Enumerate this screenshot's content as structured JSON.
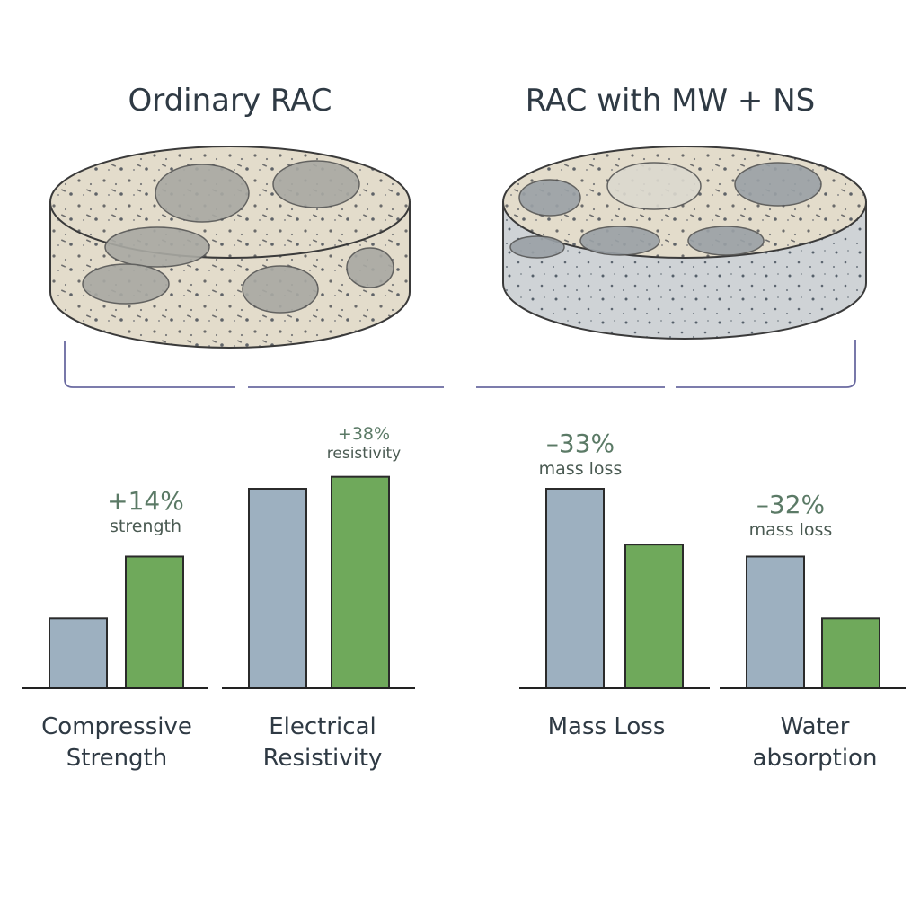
{
  "panels": {
    "left_title": "Ordinary RAC",
    "right_title": "RAC with MW + NS"
  },
  "colors": {
    "baseline": "#9db0c0",
    "treated": "#6fa95b",
    "bar_stroke": "#2b2b2b",
    "annotation": "#5b7a66",
    "bracket": "#6a6aa0"
  },
  "chart_data": [
    {
      "type": "bar",
      "categories": [
        "Compressive Strength"
      ],
      "label_lines": [
        "Compressive",
        "Strength"
      ],
      "series": [
        {
          "values": [
            0.35
          ]
        },
        {
          "values": [
            0.66
          ]
        }
      ],
      "annotation": {
        "value": "+14%",
        "text": "strength"
      }
    },
    {
      "type": "bar",
      "categories": [
        "Electrical Resistivity"
      ],
      "label_lines": [
        "Electrical",
        "Resistivity"
      ],
      "series": [
        {
          "values": [
            1.0
          ]
        },
        {
          "values": [
            1.06
          ]
        }
      ],
      "annotation": {
        "value": "+38%",
        "text": "resistivity"
      }
    },
    {
      "type": "bar",
      "categories": [
        "Mass Loss"
      ],
      "label_lines": [
        "Mass Loss"
      ],
      "series": [
        {
          "values": [
            1.0
          ]
        },
        {
          "values": [
            0.72
          ]
        }
      ],
      "annotation": {
        "value": "–33%",
        "text": "mass loss"
      }
    },
    {
      "type": "bar",
      "categories": [
        "Water absorption"
      ],
      "label_lines": [
        "Water",
        "absorption"
      ],
      "series": [
        {
          "values": [
            0.66
          ]
        },
        {
          "values": [
            0.35
          ]
        }
      ],
      "annotation": {
        "value": "–32%",
        "text": "mass loss"
      }
    }
  ]
}
